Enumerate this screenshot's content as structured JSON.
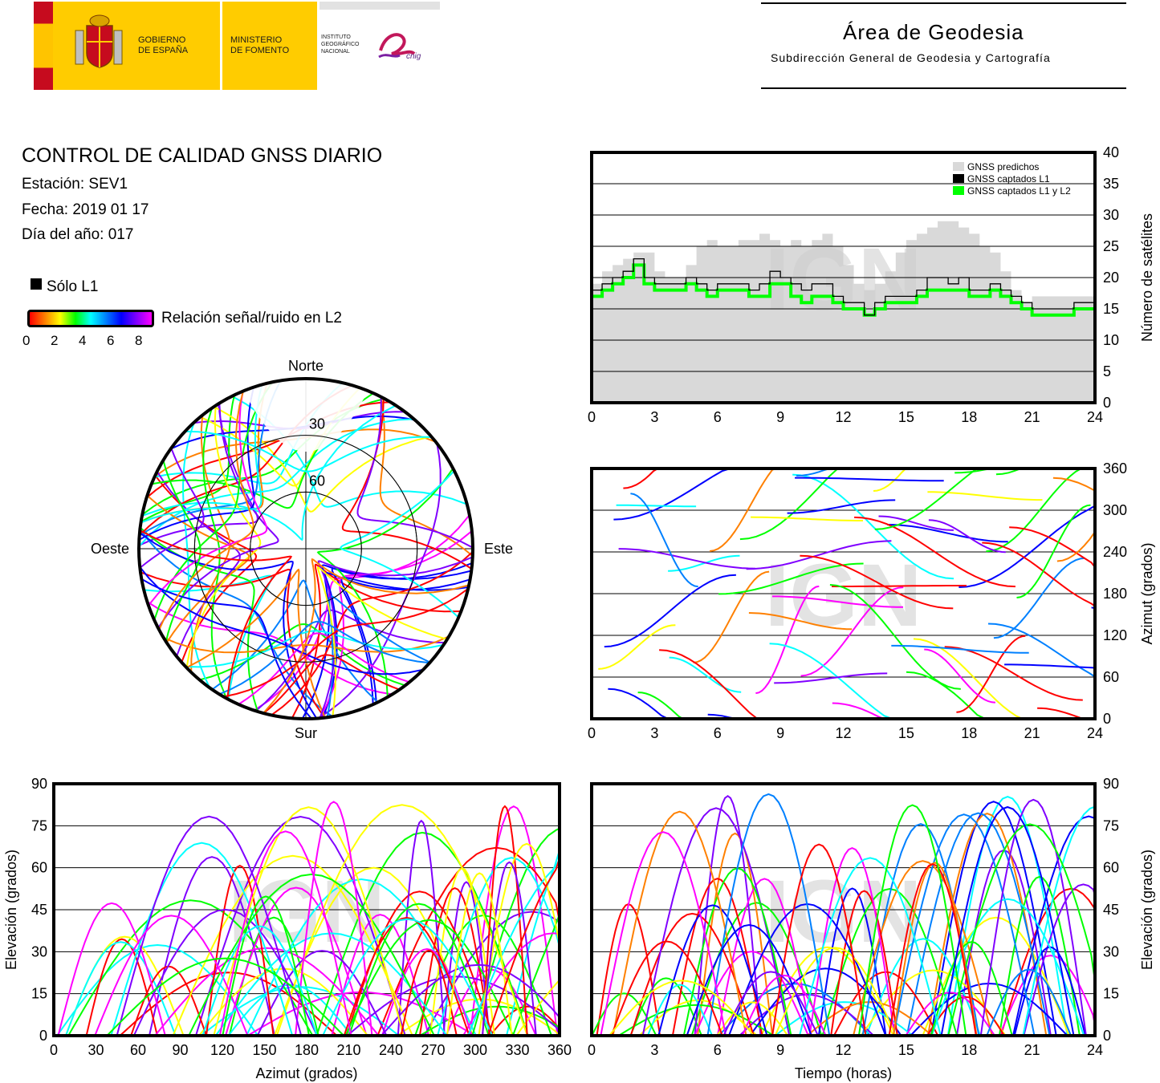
{
  "header": {
    "gov_line1": "GOBIERNO",
    "gov_line2": "DE ESPAÑA",
    "min_line1": "MINISTERIO",
    "min_line2": "DE FOMENTO",
    "ign_line1": "INSTITUTO",
    "ign_line2": "GEOGRÁFICO",
    "ign_line3": "NACIONAL",
    "cnig_logo_text": "cnig",
    "area_title": "Área de Geodesia",
    "area_subtitle": "Subdirección General de Geodesia y Cartografía"
  },
  "info": {
    "title": "CONTROL DE CALIDAD GNSS DIARIO",
    "station": "Estación: SEV1",
    "date": "Fecha: 2019 01 17",
    "doy": "Día del año: 017",
    "l1_only_label": "Sólo L1",
    "snr_label": "Relación señal/ruido en L2",
    "colorbar_ticks": [
      "0",
      "2",
      "4",
      "6",
      "8"
    ]
  },
  "watermark": "IGN",
  "colors": {
    "predicted": "#d9d9d9",
    "l1": "#000000",
    "l1l2": "#00ff00",
    "snr_scale": [
      "#ff0000",
      "#ff8000",
      "#ffff00",
      "#00ff00",
      "#00ffff",
      "#0080ff",
      "#0000ff",
      "#8000ff",
      "#ff00ff"
    ]
  },
  "chart_data": [
    {
      "id": "satellites",
      "type": "area",
      "ylabel": "Número de satélites",
      "xlim": [
        0,
        24
      ],
      "ylim": [
        0,
        40
      ],
      "xticks": [
        0,
        3,
        6,
        9,
        12,
        15,
        18,
        21,
        24
      ],
      "yticks": [
        0,
        5,
        10,
        15,
        20,
        25,
        30,
        35,
        40
      ],
      "grid": true,
      "legend_position": "top-right",
      "x": [
        0,
        0.5,
        1,
        1.5,
        2,
        2.5,
        3,
        3.5,
        4,
        4.5,
        5,
        5.5,
        6,
        6.5,
        7,
        7.5,
        8,
        8.5,
        9,
        9.5,
        10,
        10.5,
        11,
        11.5,
        12,
        12.5,
        13,
        13.5,
        14,
        14.5,
        15,
        15.5,
        16,
        16.5,
        17,
        17.5,
        18,
        18.5,
        19,
        19.5,
        20,
        20.5,
        21,
        21.5,
        22,
        22.5,
        23,
        23.5,
        24
      ],
      "series": [
        {
          "name": "GNSS predichos",
          "values": [
            19,
            21,
            22,
            23,
            24,
            24,
            21,
            20,
            20,
            22,
            25,
            26,
            25,
            25,
            26,
            26,
            27,
            26,
            25,
            26,
            25,
            26,
            27,
            25,
            22,
            19,
            18,
            19,
            21,
            24,
            26,
            27,
            28,
            29,
            29,
            28,
            27,
            25,
            24,
            21,
            18,
            16,
            17,
            17,
            17,
            17,
            17,
            17,
            18
          ]
        },
        {
          "name": "GNSS captados L1",
          "values": [
            18,
            19,
            20,
            21,
            23,
            20,
            19,
            19,
            19,
            20,
            19,
            18,
            19,
            19,
            19,
            18,
            19,
            21,
            20,
            19,
            18,
            19,
            19,
            17,
            16,
            16,
            14,
            16,
            17,
            17,
            17,
            18,
            20,
            20,
            19,
            20,
            18,
            18,
            19,
            18,
            17,
            16,
            15,
            15,
            15,
            15,
            16,
            16,
            17
          ]
        },
        {
          "name": "GNSS captados L1 y L2",
          "values": [
            17,
            18,
            19,
            20,
            22,
            19,
            18,
            18,
            18,
            19,
            18,
            17,
            18,
            18,
            18,
            17,
            17,
            19,
            19,
            17,
            16,
            17,
            17,
            16,
            15,
            15,
            14,
            15,
            16,
            16,
            16,
            17,
            18,
            18,
            18,
            18,
            17,
            17,
            18,
            17,
            16,
            15,
            14,
            14,
            14,
            14,
            15,
            15,
            16
          ]
        }
      ]
    },
    {
      "id": "skyplot",
      "type": "scatter",
      "labels": {
        "north": "Norte",
        "south": "Sur",
        "east": "Este",
        "west": "Oeste"
      },
      "ring_labels": [
        "30",
        "60"
      ],
      "elevation_rings": [
        0,
        30,
        60
      ]
    },
    {
      "id": "azimuth-time",
      "type": "scatter",
      "ylabel": "Azimut (grados)",
      "xlim": [
        0,
        24
      ],
      "ylim": [
        0,
        360
      ],
      "xticks": [
        0,
        3,
        6,
        9,
        12,
        15,
        18,
        21,
        24
      ],
      "yticks": [
        0,
        60,
        120,
        180,
        240,
        300,
        360
      ],
      "grid": true
    },
    {
      "id": "elevation-azimuth",
      "type": "scatter",
      "xlabel": "Azimut (grados)",
      "ylabel": "Elevación (grados)",
      "xlim": [
        0,
        360
      ],
      "ylim": [
        0,
        90
      ],
      "xticks": [
        0,
        30,
        60,
        90,
        120,
        150,
        180,
        210,
        240,
        270,
        300,
        330,
        360
      ],
      "yticks": [
        0,
        15,
        30,
        45,
        60,
        75,
        90
      ],
      "grid": true
    },
    {
      "id": "elevation-time",
      "type": "scatter",
      "xlabel": "Tiempo (horas)",
      "ylabel": "Elevación (grados)",
      "xlim": [
        0,
        24
      ],
      "ylim": [
        0,
        90
      ],
      "xticks": [
        0,
        3,
        6,
        9,
        12,
        15,
        18,
        21,
        24
      ],
      "yticks": [
        0,
        15,
        30,
        45,
        60,
        75,
        90
      ],
      "grid": true
    }
  ]
}
